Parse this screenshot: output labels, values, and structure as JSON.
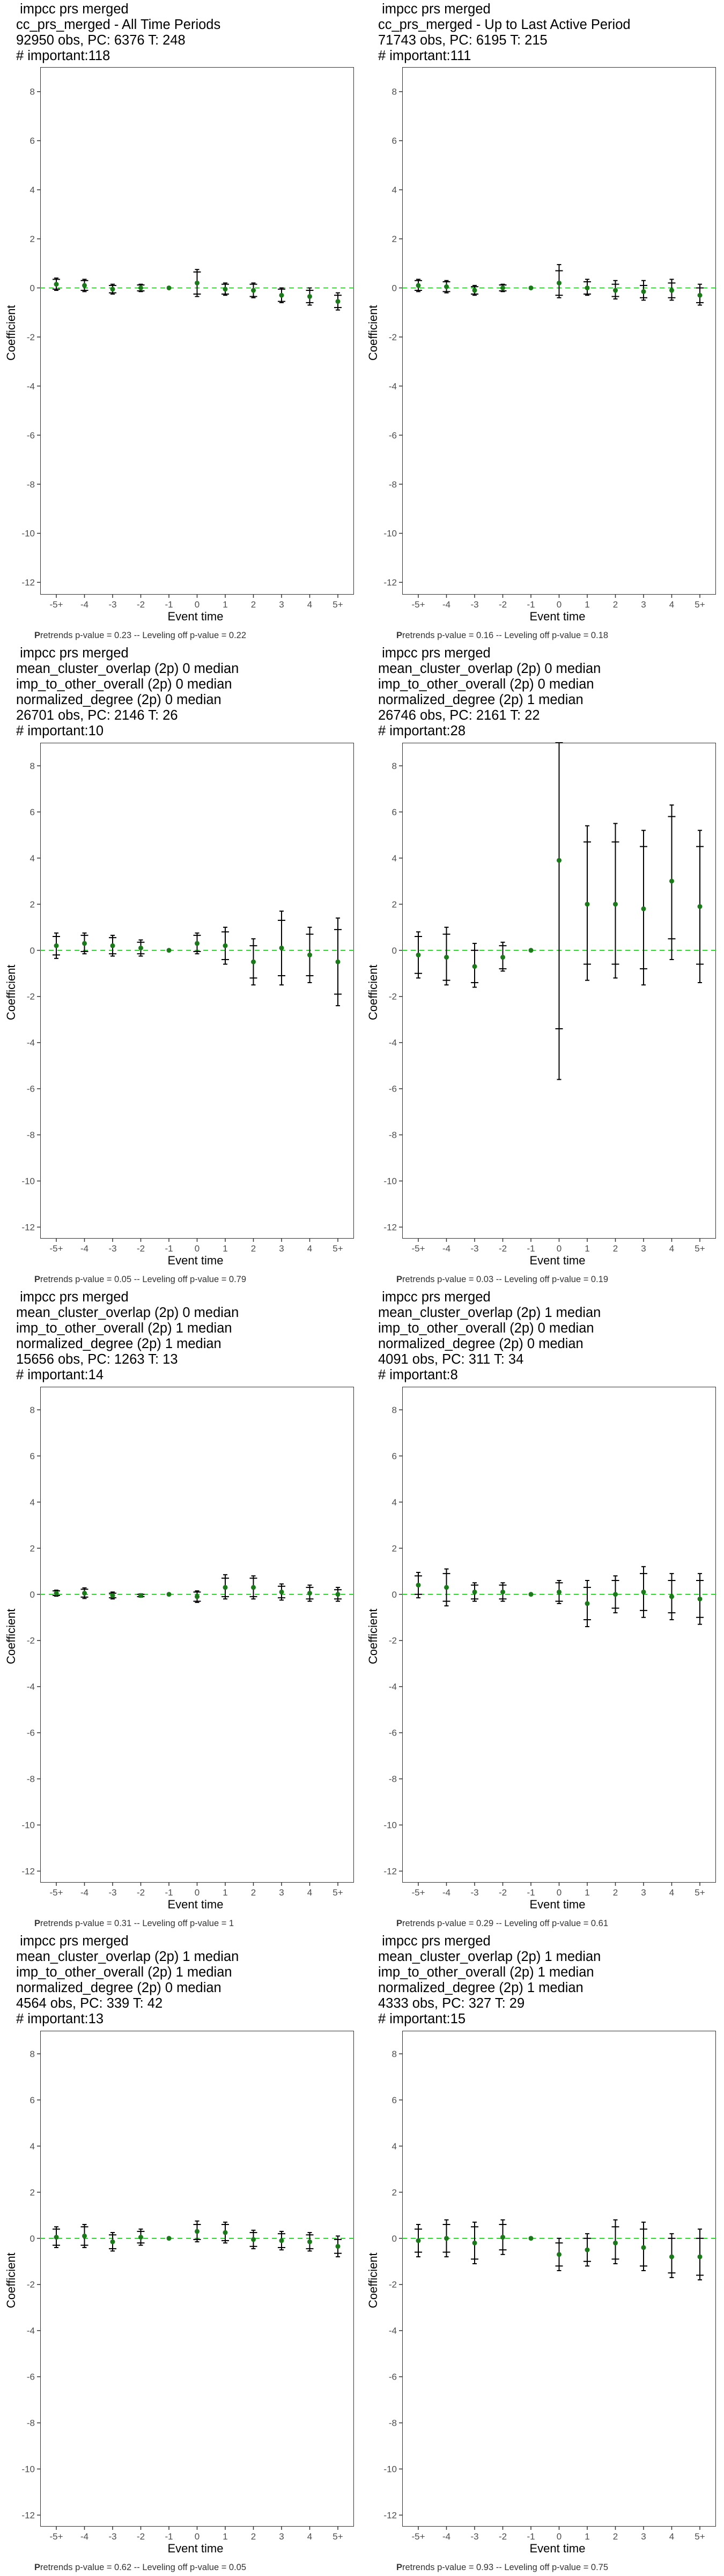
{
  "chart_data": [
    {
      "type": "scatter",
      "title_lines": [
        " impcc prs merged",
        "cc_prs_merged - All Time Periods",
        "92950 obs, PC: 6376 T: 248",
        "# important:118"
      ],
      "xlabel": "Event time",
      "ylabel": "Coefficient",
      "categories": [
        "-5+",
        "-4",
        "-3",
        "-2",
        "-1",
        "0",
        "1",
        "2",
        "3",
        "4",
        "5+"
      ],
      "y_ticks": [
        8,
        6,
        4,
        2,
        0,
        -2,
        -4,
        -6,
        -8,
        -10,
        -12
      ],
      "ylim": [
        -12.5,
        9
      ],
      "series": [
        {
          "type": "estimate",
          "values": [
            0.15,
            0.1,
            -0.05,
            0.0,
            0.0,
            0.2,
            -0.05,
            -0.1,
            -0.3,
            -0.35,
            -0.55
          ]
        },
        {
          "type": "ci90_low",
          "values": [
            -0.05,
            -0.1,
            -0.2,
            -0.12,
            0.0,
            -0.25,
            -0.25,
            -0.35,
            -0.55,
            -0.6,
            -0.8
          ]
        },
        {
          "type": "ci90_high",
          "values": [
            0.35,
            0.3,
            0.1,
            0.12,
            0.0,
            0.65,
            0.15,
            0.15,
            -0.05,
            -0.1,
            -0.3
          ]
        },
        {
          "type": "ci95_low",
          "values": [
            -0.1,
            -0.15,
            -0.25,
            -0.15,
            0.0,
            -0.35,
            -0.3,
            -0.4,
            -0.6,
            -0.7,
            -0.9
          ]
        },
        {
          "type": "ci95_high",
          "values": [
            0.4,
            0.35,
            0.15,
            0.15,
            0.0,
            0.75,
            0.2,
            0.2,
            0.0,
            0.0,
            -0.2
          ]
        }
      ],
      "caption_bold": "P",
      "caption": "retrends p-value = 0.23 -- Leveling off p-value = 0.22"
    },
    {
      "type": "scatter",
      "title_lines": [
        " impcc prs merged",
        "cc_prs_merged - Up to Last Active Period",
        "71743 obs, PC: 6195 T: 215",
        "# important:111"
      ],
      "xlabel": "Event time",
      "ylabel": "Coefficient",
      "categories": [
        "-5+",
        "-4",
        "-3",
        "-2",
        "-1",
        "0",
        "1",
        "2",
        "3",
        "4",
        "5+"
      ],
      "y_ticks": [
        8,
        6,
        4,
        2,
        0,
        -2,
        -4,
        -6,
        -8,
        -10,
        -12
      ],
      "ylim": [
        -12.5,
        9
      ],
      "series": [
        {
          "type": "estimate",
          "values": [
            0.1,
            0.05,
            -0.1,
            0.0,
            0.0,
            0.2,
            0.0,
            -0.1,
            -0.15,
            -0.1,
            -0.3
          ]
        },
        {
          "type": "ci90_low",
          "values": [
            -0.1,
            -0.15,
            -0.25,
            -0.12,
            0.0,
            -0.3,
            -0.25,
            -0.35,
            -0.4,
            -0.4,
            -0.6
          ]
        },
        {
          "type": "ci90_high",
          "values": [
            0.3,
            0.25,
            0.05,
            0.12,
            0.0,
            0.7,
            0.25,
            0.15,
            0.1,
            0.2,
            0.0
          ]
        },
        {
          "type": "ci95_low",
          "values": [
            -0.15,
            -0.2,
            -0.3,
            -0.15,
            0.0,
            -0.4,
            -0.3,
            -0.45,
            -0.5,
            -0.5,
            -0.7
          ]
        },
        {
          "type": "ci95_high",
          "values": [
            0.35,
            0.3,
            0.1,
            0.15,
            0.0,
            0.95,
            0.35,
            0.3,
            0.3,
            0.35,
            0.15
          ]
        }
      ],
      "caption_bold": "P",
      "caption": "retrends p-value = 0.16 -- Leveling off p-value = 0.18"
    },
    {
      "type": "scatter",
      "title_lines": [
        " impcc prs merged",
        "mean_cluster_overlap (2p) 0 median",
        "imp_to_other_overall (2p) 0 median",
        "normalized_degree (2p) 0 median",
        "26701 obs, PC: 2146 T: 26",
        "# important:10"
      ],
      "xlabel": "Event time",
      "ylabel": "Coefficient",
      "categories": [
        "-5+",
        "-4",
        "-3",
        "-2",
        "-1",
        "0",
        "1",
        "2",
        "3",
        "4",
        "5+"
      ],
      "y_ticks": [
        8,
        6,
        4,
        2,
        0,
        -2,
        -4,
        -6,
        -8,
        -10,
        -12
      ],
      "ylim": [
        -12.5,
        9
      ],
      "series": [
        {
          "type": "estimate",
          "values": [
            0.2,
            0.3,
            0.2,
            0.1,
            0.0,
            0.3,
            0.2,
            -0.5,
            0.1,
            -0.2,
            -0.5
          ]
        },
        {
          "type": "ci90_low",
          "values": [
            -0.2,
            -0.05,
            -0.15,
            -0.15,
            0.0,
            -0.05,
            -0.4,
            -1.2,
            -1.1,
            -1.1,
            -1.9
          ]
        },
        {
          "type": "ci90_high",
          "values": [
            0.6,
            0.65,
            0.55,
            0.35,
            0.0,
            0.65,
            0.8,
            0.2,
            1.3,
            0.7,
            0.9
          ]
        },
        {
          "type": "ci95_low",
          "values": [
            -0.35,
            -0.15,
            -0.25,
            -0.25,
            0.0,
            -0.15,
            -0.6,
            -1.5,
            -1.5,
            -1.4,
            -2.4
          ]
        },
        {
          "type": "ci95_high",
          "values": [
            0.75,
            0.75,
            0.65,
            0.45,
            0.0,
            0.75,
            1.0,
            0.5,
            1.7,
            1.0,
            1.4
          ]
        }
      ],
      "caption_bold": "P",
      "caption": "retrends p-value = 0.05 -- Leveling off p-value = 0.79"
    },
    {
      "type": "scatter",
      "title_lines": [
        " impcc prs merged",
        "mean_cluster_overlap (2p) 0 median",
        "imp_to_other_overall (2p) 0 median",
        "normalized_degree (2p) 1 median",
        "26746 obs, PC: 2161 T: 22",
        "# important:28"
      ],
      "xlabel": "Event time",
      "ylabel": "Coefficient",
      "categories": [
        "-5+",
        "-4",
        "-3",
        "-2",
        "-1",
        "0",
        "1",
        "2",
        "3",
        "4",
        "5+"
      ],
      "y_ticks": [
        8,
        6,
        4,
        2,
        0,
        -2,
        -4,
        -6,
        -8,
        -10,
        -12
      ],
      "ylim": [
        -12.5,
        9
      ],
      "series": [
        {
          "type": "estimate",
          "values": [
            -0.2,
            -0.3,
            -0.7,
            -0.3,
            0.0,
            3.9,
            2.0,
            2.0,
            1.8,
            3.0,
            1.9
          ]
        },
        {
          "type": "ci90_low",
          "values": [
            -1.0,
            -1.3,
            -1.4,
            -0.8,
            0.0,
            -3.4,
            -0.6,
            -0.6,
            -0.8,
            0.5,
            -0.6
          ]
        },
        {
          "type": "ci90_high",
          "values": [
            0.6,
            0.7,
            0.0,
            0.2,
            0.0,
            9.0,
            4.7,
            4.7,
            4.5,
            5.8,
            4.5
          ]
        },
        {
          "type": "ci95_low",
          "values": [
            -1.2,
            -1.5,
            -1.6,
            -0.9,
            0.0,
            -5.6,
            -1.3,
            -1.2,
            -1.5,
            -0.4,
            -1.4
          ]
        },
        {
          "type": "ci95_high",
          "values": [
            0.8,
            1.0,
            0.3,
            0.35,
            0.0,
            9.0,
            5.4,
            5.5,
            5.2,
            6.3,
            5.2
          ]
        }
      ],
      "caption_bold": "P",
      "caption": "retrends p-value = 0.03 -- Leveling off p-value = 0.19"
    },
    {
      "type": "scatter",
      "title_lines": [
        " impcc prs merged",
        "mean_cluster_overlap (2p) 0 median",
        "imp_to_other_overall (2p) 1 median",
        "normalized_degree (2p) 1 median",
        "15656 obs, PC: 1263 T: 13",
        "# important:14"
      ],
      "xlabel": "Event time",
      "ylabel": "Coefficient",
      "categories": [
        "-5+",
        "-4",
        "-3",
        "-2",
        "-1",
        "0",
        "1",
        "2",
        "3",
        "4",
        "5+"
      ],
      "y_ticks": [
        8,
        6,
        4,
        2,
        0,
        -2,
        -4,
        -6,
        -8,
        -10,
        -12
      ],
      "ylim": [
        -12.5,
        9
      ],
      "series": [
        {
          "type": "estimate",
          "values": [
            0.05,
            0.05,
            -0.05,
            -0.05,
            0.0,
            -0.1,
            0.3,
            0.3,
            0.1,
            0.05,
            0.0
          ]
        },
        {
          "type": "ci90_low",
          "values": [
            -0.05,
            -0.12,
            -0.15,
            -0.1,
            0.0,
            -0.3,
            -0.1,
            -0.1,
            -0.15,
            -0.2,
            -0.2
          ]
        },
        {
          "type": "ci90_high",
          "values": [
            0.15,
            0.22,
            0.05,
            0.0,
            0.0,
            0.1,
            0.7,
            0.7,
            0.35,
            0.3,
            0.2
          ]
        },
        {
          "type": "ci95_low",
          "values": [
            -0.08,
            -0.18,
            -0.2,
            -0.12,
            0.0,
            -0.35,
            -0.2,
            -0.2,
            -0.25,
            -0.3,
            -0.3
          ]
        },
        {
          "type": "ci95_high",
          "values": [
            0.18,
            0.28,
            0.1,
            0.02,
            0.0,
            0.15,
            0.85,
            0.8,
            0.45,
            0.4,
            0.3
          ]
        }
      ],
      "caption_bold": "P",
      "caption": "retrends p-value = 0.31 -- Leveling off p-value = 1"
    },
    {
      "type": "scatter",
      "title_lines": [
        " impcc prs merged",
        "mean_cluster_overlap (2p) 1 median",
        "imp_to_other_overall (2p) 0 median",
        "normalized_degree (2p) 0 median",
        "4091 obs, PC: 311 T: 34",
        "# important:8"
      ],
      "xlabel": "Event time",
      "ylabel": "Coefficient",
      "categories": [
        "-5+",
        "-4",
        "-3",
        "-2",
        "-1",
        "0",
        "1",
        "2",
        "3",
        "4",
        "5+"
      ],
      "y_ticks": [
        8,
        6,
        4,
        2,
        0,
        -2,
        -4,
        -6,
        -8,
        -10,
        -12
      ],
      "ylim": [
        -12.5,
        9
      ],
      "series": [
        {
          "type": "estimate",
          "values": [
            0.4,
            0.3,
            0.1,
            0.1,
            0.0,
            0.1,
            -0.4,
            0.0,
            0.1,
            -0.1,
            -0.2
          ]
        },
        {
          "type": "ci90_low",
          "values": [
            0.0,
            -0.3,
            -0.2,
            -0.2,
            0.0,
            -0.3,
            -1.1,
            -0.6,
            -0.7,
            -0.8,
            -1.0
          ]
        },
        {
          "type": "ci90_high",
          "values": [
            0.8,
            0.9,
            0.4,
            0.4,
            0.0,
            0.5,
            0.3,
            0.6,
            0.9,
            0.6,
            0.6
          ]
        },
        {
          "type": "ci95_low",
          "values": [
            -0.15,
            -0.5,
            -0.3,
            -0.3,
            0.0,
            -0.4,
            -1.4,
            -0.8,
            -1.0,
            -1.1,
            -1.3
          ]
        },
        {
          "type": "ci95_high",
          "values": [
            0.95,
            1.1,
            0.5,
            0.5,
            0.0,
            0.6,
            0.6,
            0.8,
            1.2,
            0.9,
            0.9
          ]
        }
      ],
      "caption_bold": "P",
      "caption": "retrends p-value = 0.29 -- Leveling off p-value = 0.61"
    },
    {
      "type": "scatter",
      "title_lines": [
        " impcc prs merged",
        "mean_cluster_overlap (2p) 1 median",
        "imp_to_other_overall (2p) 1 median",
        "normalized_degree (2p) 0 median",
        "4564 obs, PC: 339 T: 42",
        "# important:13"
      ],
      "xlabel": "Event time",
      "ylabel": "Coefficient",
      "categories": [
        "-5+",
        "-4",
        "-3",
        "-2",
        "-1",
        "0",
        "1",
        "2",
        "3",
        "4",
        "5+"
      ],
      "y_ticks": [
        8,
        6,
        4,
        2,
        0,
        -2,
        -4,
        -6,
        -8,
        -10,
        -12
      ],
      "ylim": [
        -12.5,
        9
      ],
      "series": [
        {
          "type": "estimate",
          "values": [
            0.05,
            0.1,
            -0.15,
            0.05,
            0.0,
            0.3,
            0.25,
            -0.05,
            -0.1,
            -0.15,
            -0.35
          ]
        },
        {
          "type": "ci90_low",
          "values": [
            -0.3,
            -0.3,
            -0.45,
            -0.2,
            0.0,
            -0.05,
            -0.1,
            -0.35,
            -0.4,
            -0.45,
            -0.65
          ]
        },
        {
          "type": "ci90_high",
          "values": [
            0.4,
            0.5,
            0.15,
            0.3,
            0.0,
            0.6,
            0.6,
            0.25,
            0.2,
            0.15,
            -0.05
          ]
        },
        {
          "type": "ci95_low",
          "values": [
            -0.4,
            -0.4,
            -0.55,
            -0.3,
            0.0,
            -0.15,
            -0.2,
            -0.45,
            -0.5,
            -0.55,
            -0.8
          ]
        },
        {
          "type": "ci95_high",
          "values": [
            0.5,
            0.6,
            0.25,
            0.4,
            0.0,
            0.75,
            0.7,
            0.35,
            0.3,
            0.25,
            0.1
          ]
        }
      ],
      "caption_bold": "P",
      "caption": "retrends p-value = 0.62 -- Leveling off p-value = 0.05"
    },
    {
      "type": "scatter",
      "title_lines": [
        " impcc prs merged",
        "mean_cluster_overlap (2p) 1 median",
        "imp_to_other_overall (2p) 1 median",
        "normalized_degree (2p) 1 median",
        "4333 obs, PC: 327 T: 29",
        "# important:15"
      ],
      "xlabel": "Event time",
      "ylabel": "Coefficient",
      "categories": [
        "-5+",
        "-4",
        "-3",
        "-2",
        "-1",
        "0",
        "1",
        "2",
        "3",
        "4",
        "5+"
      ],
      "y_ticks": [
        8,
        6,
        4,
        2,
        0,
        -2,
        -4,
        -6,
        -8,
        -10,
        -12
      ],
      "ylim": [
        -12.5,
        9
      ],
      "series": [
        {
          "type": "estimate",
          "values": [
            -0.1,
            0.0,
            -0.2,
            0.05,
            0.0,
            -0.7,
            -0.5,
            -0.2,
            -0.4,
            -0.8,
            -0.8
          ]
        },
        {
          "type": "ci90_low",
          "values": [
            -0.6,
            -0.6,
            -0.9,
            -0.5,
            0.0,
            -1.2,
            -1.0,
            -0.9,
            -1.2,
            -1.5,
            -1.6
          ]
        },
        {
          "type": "ci90_high",
          "values": [
            0.4,
            0.6,
            0.5,
            0.6,
            0.0,
            -0.2,
            0.0,
            0.5,
            0.4,
            0.0,
            0.0
          ]
        },
        {
          "type": "ci95_low",
          "values": [
            -0.8,
            -0.8,
            -1.1,
            -0.7,
            0.0,
            -1.4,
            -1.2,
            -1.1,
            -1.4,
            -1.7,
            -1.8
          ]
        },
        {
          "type": "ci95_high",
          "values": [
            0.6,
            0.8,
            0.7,
            0.8,
            0.0,
            0.0,
            0.2,
            0.8,
            0.7,
            0.2,
            0.4
          ]
        }
      ],
      "caption_bold": "P",
      "caption": "retrends p-value = 0.93 -- Leveling off p-value = 0.75"
    }
  ],
  "colors": {
    "zero_line": "#22cc22",
    "point": "#1a7a1a",
    "errorbar": "#000000",
    "frame": "#333333",
    "tick_text": "#4d4d4d"
  }
}
